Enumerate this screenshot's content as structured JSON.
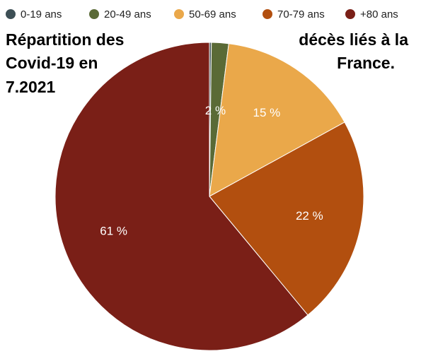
{
  "chart_data": {
    "type": "pie",
    "title_lines": [
      "Répartition des",
      "Covid-19 en",
      "7.2021",
      "décès liés à la",
      "France."
    ],
    "categories": [
      "0-19 ans",
      "20-49 ans",
      "50-69 ans",
      "70-79 ans",
      "+80 ans"
    ],
    "values": [
      0.2,
      1.8,
      15,
      22,
      61
    ],
    "data_labels": [
      "",
      "2 %",
      "15 %",
      "22 %",
      "61 %"
    ],
    "colors": [
      "#3d4f55",
      "#5a6a36",
      "#eaa84a",
      "#b24f0f",
      "#7a1f17"
    ],
    "legend_position": "top"
  }
}
